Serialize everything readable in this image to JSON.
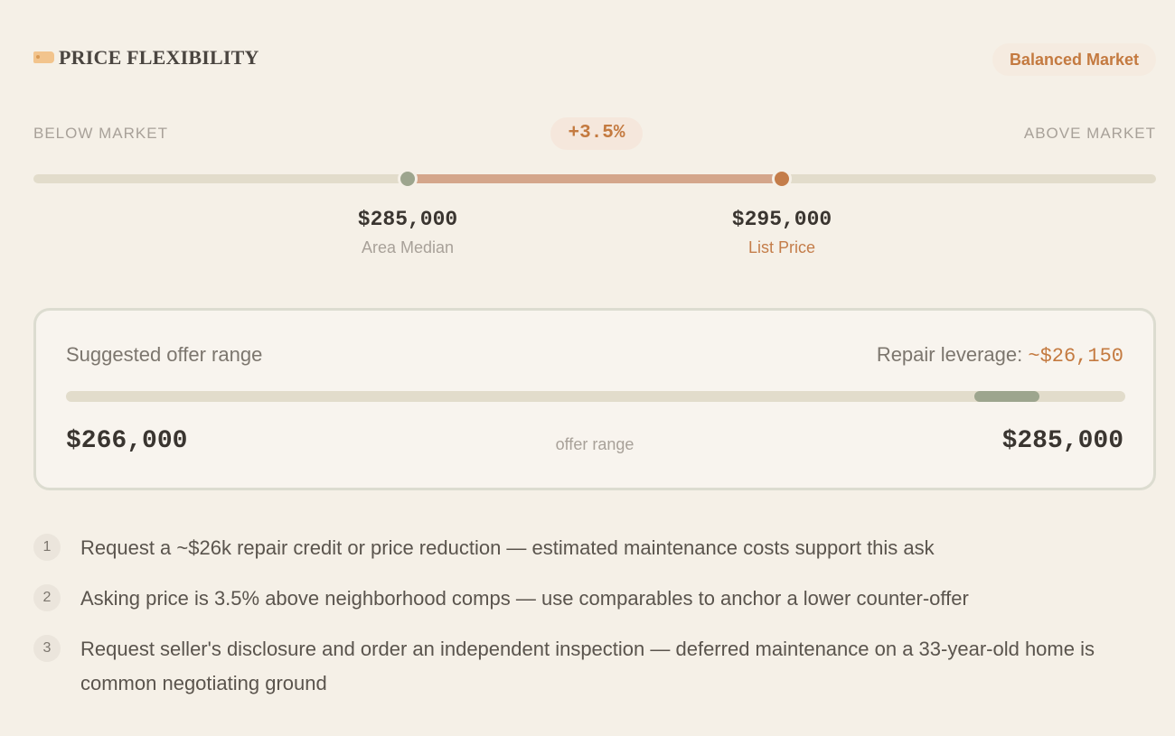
{
  "header": {
    "title": "PRICE FLEXIBILITY",
    "icon": "price-tag-icon",
    "badge": "Balanced Market"
  },
  "scale": {
    "below_label": "BELOW MARKET",
    "above_label": "ABOVE MARKET",
    "percent_diff": "+3.5%",
    "median_value": "$285,000",
    "median_label": "Area Median",
    "list_value": "$295,000",
    "list_label": "List Price"
  },
  "offer": {
    "title": "Suggested offer range",
    "repair_label": "Repair leverage:",
    "repair_value": "~$26,150",
    "min": "$266,000",
    "max": "$285,000",
    "caption": "offer range"
  },
  "tips": [
    {
      "num": "1",
      "text": "Request a ~$26k repair credit or price reduction — estimated maintenance costs support this ask"
    },
    {
      "num": "2",
      "text": "Asking price is 3.5% above neighborhood comps — use comparables to anchor a lower counter-offer"
    },
    {
      "num": "3",
      "text": "Request seller's disclosure and order an independent inspection — deferred maintenance on a 33-year-old home is common negotiating ground"
    }
  ],
  "colors": {
    "accent": "#c47a40",
    "median_dot": "#9da58e",
    "list_dot": "#c47d4a",
    "fill": "#d4a68b",
    "track": "#e2dccb"
  }
}
